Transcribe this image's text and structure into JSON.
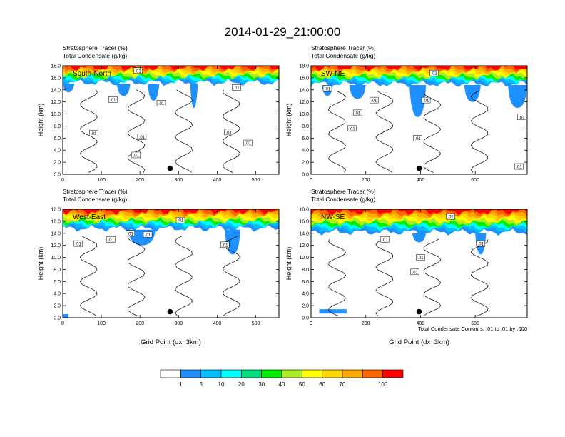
{
  "figure": {
    "title": "2014-01-29_21:00:00",
    "contour_note": "Total Condensate Contours: .01 to .01 by .000",
    "colorbar": {
      "levels": [
        "1",
        "5",
        "10",
        "20",
        "30",
        "40",
        "50",
        "60",
        "70",
        "100"
      ],
      "colors": [
        "#ffffff",
        "#1e90ff",
        "#00bfff",
        "#00ffff",
        "#00e080",
        "#00ee00",
        "#aaee22",
        "#ffff00",
        "#ffd700",
        "#ffaa00",
        "#ff6600",
        "#ff0000"
      ]
    }
  },
  "chart_data": [
    {
      "type": "heatmap",
      "panel_label": "South-North",
      "header_line1": "Stratosphere Tracer   (%)",
      "header_line2": "Total Condensate   (g/kg)",
      "ylabel": "Height (km)",
      "xlabel": "",
      "xlim": [
        0,
        560
      ],
      "ylim": [
        0,
        18
      ],
      "xticks": [
        "0",
        "100",
        "200",
        "300",
        "400",
        "500"
      ],
      "xtick_values": [
        0,
        100,
        200,
        300,
        400,
        500
      ],
      "yticks": [
        "0.0",
        "2.0",
        "4.0",
        "6.0",
        "8.0",
        "10.0",
        "12.0",
        "14.0",
        "16.0",
        "18.0"
      ],
      "tracer_base_km": 15.2,
      "blue_patches": [
        [
          0,
          30,
          13.6
        ],
        [
          140,
          175,
          13.0
        ],
        [
          220,
          250,
          12.2
        ],
        [
          330,
          350,
          11.0
        ]
      ],
      "contour_labels": [
        {
          "x": 195,
          "y": 17.2,
          "text": ".01"
        },
        {
          "x": 130,
          "y": 12.4,
          "text": ".01"
        },
        {
          "x": 255,
          "y": 11.8,
          "text": ".01"
        },
        {
          "x": 450,
          "y": 14.4,
          "text": ".01"
        },
        {
          "x": 80,
          "y": 6.8,
          "text": ".01"
        },
        {
          "x": 205,
          "y": 6.2,
          "text": ".01"
        },
        {
          "x": 430,
          "y": 7.0,
          "text": ".01"
        },
        {
          "x": 480,
          "y": 5.2,
          "text": ".01"
        },
        {
          "x": 190,
          "y": 3.2,
          "text": ".01"
        }
      ],
      "marker": {
        "x": 278,
        "y": 1.0
      }
    },
    {
      "type": "heatmap",
      "panel_label": "SW-NE",
      "header_line1": "Stratosphere Tracer   (%)",
      "header_line2": "Total Condensate   (g/kg)",
      "ylabel": "Height (km)",
      "xlabel": "",
      "xlim": [
        0,
        790
      ],
      "ylim": [
        0,
        18
      ],
      "xticks": [
        "0",
        "200",
        "400",
        "600"
      ],
      "xtick_values": [
        0,
        200,
        400,
        600
      ],
      "yticks": [
        "0.0",
        "2.0",
        "4.0",
        "6.0",
        "8.0",
        "10.0",
        "12.0",
        "14.0",
        "16.0",
        "18.0"
      ],
      "tracer_base_km": 15.0,
      "blue_patches": [
        [
          40,
          80,
          13.0
        ],
        [
          140,
          200,
          12.5
        ],
        [
          360,
          420,
          9.5
        ],
        [
          560,
          620,
          12.0
        ],
        [
          720,
          790,
          11.0
        ]
      ],
      "contour_labels": [
        {
          "x": 60,
          "y": 14.2,
          "text": ".01"
        },
        {
          "x": 450,
          "y": 16.8,
          "text": ".01"
        },
        {
          "x": 230,
          "y": 12.3,
          "text": ".01"
        },
        {
          "x": 420,
          "y": 12.3,
          "text": ".01"
        },
        {
          "x": 170,
          "y": 10.2,
          "text": ".01"
        },
        {
          "x": 150,
          "y": 7.6,
          "text": ".01"
        },
        {
          "x": 770,
          "y": 9.5,
          "text": ".01"
        },
        {
          "x": 390,
          "y": 6.0,
          "text": ".01"
        },
        {
          "x": 760,
          "y": 1.3,
          "text": ".01"
        }
      ],
      "marker": {
        "x": 395,
        "y": 1.0
      }
    },
    {
      "type": "heatmap",
      "panel_label": "West-East",
      "header_line1": "Stratosphere Tracer   (%)",
      "header_line2": "Total Condensate   (g/kg)",
      "ylabel": "Height (km)",
      "xlabel": "Grid Point (dx=3km)",
      "xlim": [
        0,
        560
      ],
      "ylim": [
        0,
        18
      ],
      "xticks": [
        "0",
        "100",
        "200",
        "300",
        "400",
        "500"
      ],
      "xtick_values": [
        0,
        100,
        200,
        300,
        400,
        500
      ],
      "yticks": [
        "0.0",
        "2.0",
        "4.0",
        "6.0",
        "8.0",
        "10.0",
        "12.0",
        "14.0",
        "16.0",
        "18.0"
      ],
      "tracer_base_km": 14.8,
      "blue_patches": [
        [
          170,
          240,
          12.0
        ],
        [
          420,
          460,
          10.5
        ],
        [
          0,
          15,
          0.0
        ]
      ],
      "contour_labels": [
        {
          "x": 40,
          "y": 12.3,
          "text": ".01"
        },
        {
          "x": 125,
          "y": 13.0,
          "text": ".01"
        },
        {
          "x": 175,
          "y": 14.0,
          "text": ".01"
        },
        {
          "x": 220,
          "y": 13.8,
          "text": ".01"
        },
        {
          "x": 305,
          "y": 16.2,
          "text": ".01"
        },
        {
          "x": 420,
          "y": 12.1,
          "text": ".01"
        }
      ],
      "marker": {
        "x": 278,
        "y": 1.0
      }
    },
    {
      "type": "heatmap",
      "panel_label": "NW-SE",
      "header_line1": "Stratosphere Tracer   (%)",
      "header_line2": "Total Condensate   (g/kg)",
      "ylabel": "Height (km)",
      "xlabel": "Grid Point (dx=3km)",
      "xlim": [
        0,
        790
      ],
      "ylim": [
        0,
        18
      ],
      "xticks": [
        "0",
        "200",
        "400",
        "600"
      ],
      "xtick_values": [
        0,
        200,
        400,
        600
      ],
      "yticks": [
        "0.0",
        "2.0",
        "4.0",
        "6.0",
        "8.0",
        "10.0",
        "12.0",
        "14.0",
        "16.0",
        "18.0"
      ],
      "tracer_base_km": 14.2,
      "blue_patches": [
        [
          370,
          420,
          12.5
        ],
        [
          600,
          640,
          10.5
        ],
        [
          30,
          130,
          0.8
        ]
      ],
      "contour_labels": [
        {
          "x": 270,
          "y": 13.0,
          "text": ".01"
        },
        {
          "x": 510,
          "y": 16.8,
          "text": ".01"
        },
        {
          "x": 620,
          "y": 12.3,
          "text": ".01"
        },
        {
          "x": 400,
          "y": 10.0,
          "text": ".01"
        },
        {
          "x": 380,
          "y": 7.6,
          "text": ".01"
        }
      ],
      "marker": {
        "x": 395,
        "y": 1.0
      }
    }
  ]
}
